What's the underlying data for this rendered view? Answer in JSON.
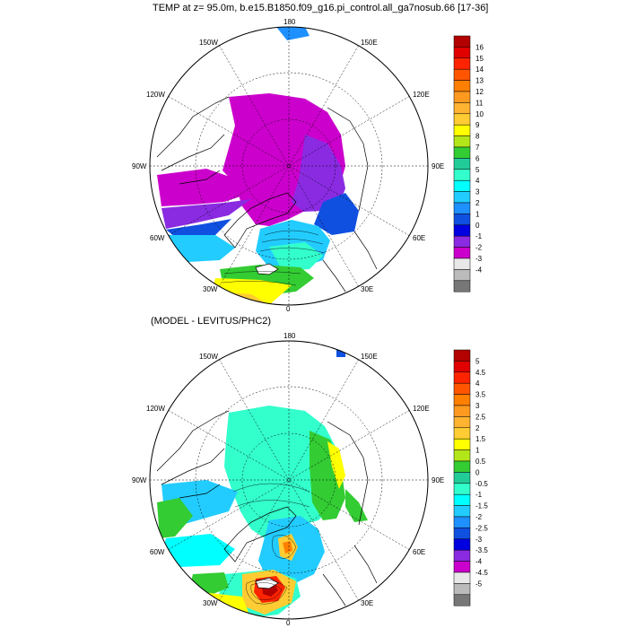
{
  "title": "TEMP at z=  95.0m, b.e15.B1850.f09_g16.pi_control.all_ga7nosub.66 [17-36]",
  "subtitle": "(MODEL - LEVITUS/PHC2)",
  "map1": {
    "longitude_labels": {
      "top": "180",
      "nw": "150W",
      "ne": "150E",
      "wnw": "120W",
      "ene": "120E",
      "w": "90W",
      "e": "90E",
      "wsw": "60W",
      "ese": "60E",
      "sw": "30W",
      "se": "30E",
      "bottom": "0"
    },
    "colorbar": {
      "labels": [
        "16",
        "15",
        "14",
        "13",
        "12",
        "11",
        "10",
        "9",
        "8",
        "7",
        "6",
        "5",
        "4",
        "3",
        "2",
        "1",
        "0",
        "-1",
        "-2",
        "-3",
        "-4"
      ],
      "colors": [
        "#b30000",
        "#e00000",
        "#ff2400",
        "#ff5500",
        "#ff7f00",
        "#ff9a20",
        "#ffb330",
        "#ffcc33",
        "#ffff00",
        "#b3e619",
        "#33cc33",
        "#22cc99",
        "#33ffcc",
        "#00ffff",
        "#22ccff",
        "#1e90ff",
        "#1050e0",
        "#0000e0",
        "#8a2be2",
        "#cc00cc",
        "#e8e8e8",
        "#bbbbbb",
        "#777777"
      ]
    }
  },
  "map2": {
    "longitude_labels": {
      "top": "180",
      "nw": "150W",
      "ne": "150E",
      "wnw": "120W",
      "ene": "120E",
      "w": "90W",
      "e": "90E",
      "wsw": "60W",
      "ese": "60E",
      "sw": "30W",
      "se": "30E",
      "bottom": "0"
    },
    "colorbar": {
      "labels": [
        "5",
        "4.5",
        "4",
        "3.5",
        "3",
        "2.5",
        "2",
        "1.5",
        "1",
        "0.5",
        "0",
        "-0.5",
        "-1",
        "-1.5",
        "-2",
        "-2.5",
        "-3",
        "-3.5",
        "-4",
        "-4.5",
        "-5"
      ],
      "colors": [
        "#b30000",
        "#e00000",
        "#ff2400",
        "#ff5500",
        "#ff7f00",
        "#ff9a20",
        "#ffb330",
        "#ffcc33",
        "#ffff00",
        "#b3e619",
        "#33cc33",
        "#22cc99",
        "#33ffcc",
        "#00ffff",
        "#22ccff",
        "#1e90ff",
        "#1050e0",
        "#0000e0",
        "#8a2be2",
        "#cc00cc",
        "#e8e8e8",
        "#bbbbbb",
        "#777777"
      ]
    }
  }
}
